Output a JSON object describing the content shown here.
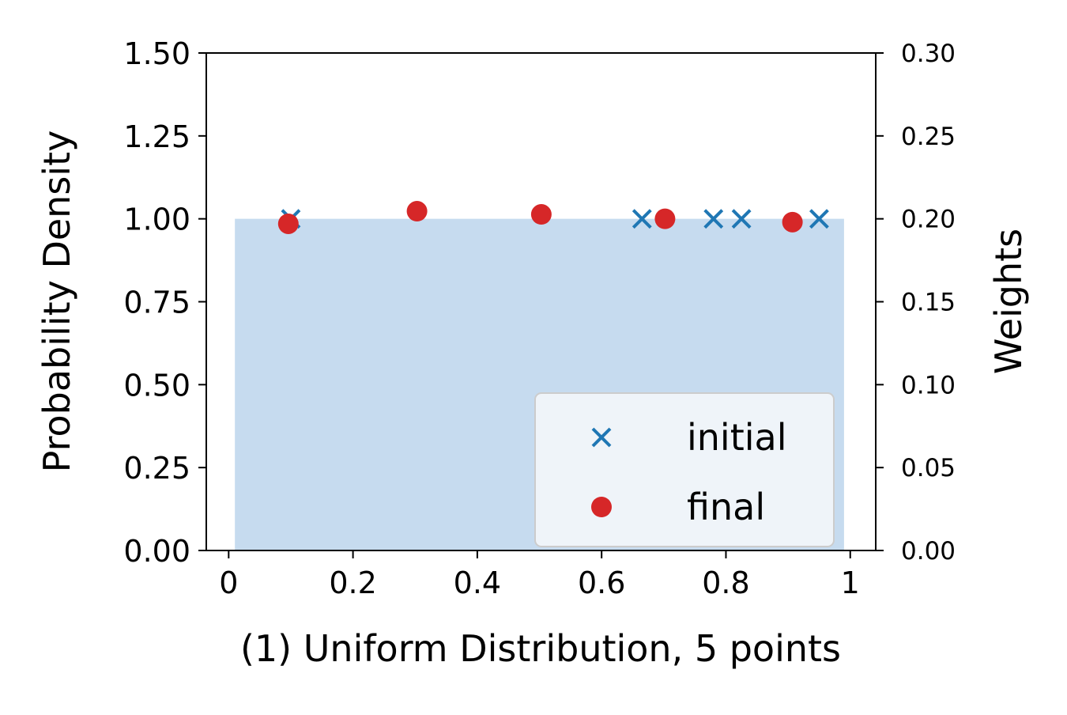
{
  "chart_data": {
    "type": "scatter",
    "xlabel": "(1) Uniform Distribution, 5 points",
    "ylabel": "Probability Density",
    "y2label": "Weights",
    "xlim": [
      -0.036,
      1.041
    ],
    "xticks": [
      0,
      0.2,
      0.4,
      0.6,
      0.8,
      1
    ],
    "ylim": [
      0,
      1.5
    ],
    "yticks": [
      {
        "value": 0,
        "label": "0.00"
      },
      {
        "value": 0.25,
        "label": "0.25"
      },
      {
        "value": 0.5,
        "label": "0.50"
      },
      {
        "value": 0.75,
        "label": "0.75"
      },
      {
        "value": 1,
        "label": "1.00"
      },
      {
        "value": 1.25,
        "label": "1.25"
      },
      {
        "value": 1.5,
        "label": "1.50"
      }
    ],
    "y2lim": [
      0,
      0.3
    ],
    "y2ticks": [
      {
        "value": 0,
        "label": "0.00"
      },
      {
        "value": 0.05,
        "label": "0.05"
      },
      {
        "value": 0.1,
        "label": "0.10"
      },
      {
        "value": 0.15,
        "label": "0.15"
      },
      {
        "value": 0.2,
        "label": "0.20"
      },
      {
        "value": 0.25,
        "label": "0.25"
      },
      {
        "value": 0.3,
        "label": "0.30"
      }
    ],
    "density": {
      "x": [
        0.01,
        0.99
      ],
      "values": [
        1,
        1
      ],
      "color": "#c6dbef"
    },
    "legend": "lower right",
    "series": [
      {
        "name": "initial",
        "color": "#1f77b4",
        "marker": "x",
        "axis": "y2",
        "x": [
          0.1,
          0.665,
          0.78,
          0.825,
          0.95
        ],
        "values": [
          0.2,
          0.2,
          0.2,
          0.2,
          0.2
        ]
      },
      {
        "name": "final",
        "color": "#d62728",
        "marker": "o",
        "axis": "y2",
        "x": [
          0.096,
          0.303,
          0.503,
          0.702,
          0.907
        ],
        "values": [
          0.197,
          0.2046,
          0.2027,
          0.2,
          0.198
        ]
      }
    ]
  }
}
